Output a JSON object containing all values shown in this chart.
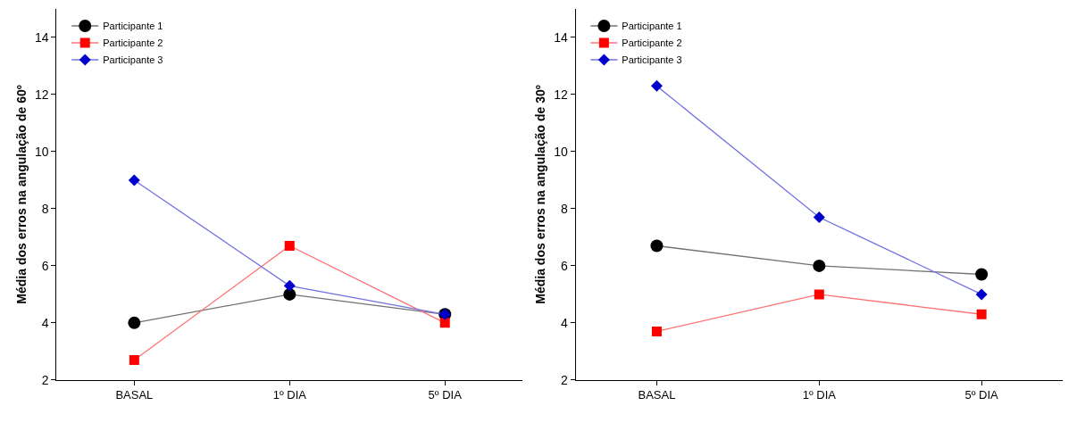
{
  "chart_data": [
    {
      "type": "line",
      "ylabel": "Média dos erros na angulação de 60º",
      "categories": [
        "BASAL",
        "1º DIA",
        "5º DIA"
      ],
      "ylim": [
        2,
        15
      ],
      "yticks": [
        2,
        4,
        6,
        8,
        10,
        12,
        14
      ],
      "legend": "top left",
      "series": [
        {
          "name": "Participante 1",
          "color": "#000000",
          "marker": "circle",
          "values": [
            4.0,
            5.0,
            4.3
          ]
        },
        {
          "name": "Participante 2",
          "color": "#ff0000",
          "marker": "square",
          "values": [
            2.7,
            6.7,
            4.0
          ]
        },
        {
          "name": "Participante 3",
          "color": "#0000cc",
          "marker": "diamond",
          "values": [
            9.0,
            5.3,
            4.3
          ]
        }
      ]
    },
    {
      "type": "line",
      "ylabel": "Média dos erros na angulação de 30º",
      "categories": [
        "BASAL",
        "1º DIA",
        "5º DIA"
      ],
      "ylim": [
        2,
        15
      ],
      "yticks": [
        2,
        4,
        6,
        8,
        10,
        12,
        14
      ],
      "legend": "top left",
      "series": [
        {
          "name": "Participante 1",
          "color": "#000000",
          "marker": "circle",
          "values": [
            6.7,
            6.0,
            5.7
          ]
        },
        {
          "name": "Participante 2",
          "color": "#ff0000",
          "marker": "square",
          "values": [
            3.7,
            5.0,
            4.3
          ]
        },
        {
          "name": "Participante 3",
          "color": "#0000cc",
          "marker": "diamond",
          "values": [
            12.3,
            7.7,
            5.0
          ]
        }
      ]
    }
  ]
}
